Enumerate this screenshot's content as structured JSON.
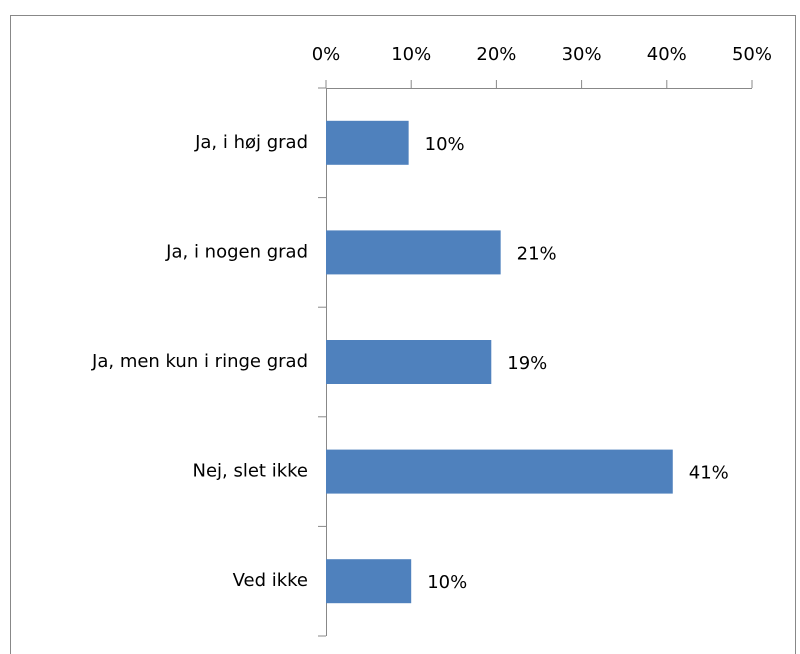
{
  "chart_data": {
    "type": "bar",
    "orientation": "horizontal",
    "categories": [
      "Ja, i høj grad",
      "Ja, i nogen grad",
      "Ja, men kun i ringe grad",
      "Nej, slet ikke",
      "Ved ikke"
    ],
    "values": [
      9.7,
      20.5,
      19.4,
      40.7,
      10.0
    ],
    "value_labels": [
      "10%",
      "21%",
      "19%",
      "41%",
      "10%"
    ],
    "color": "#4f81bd",
    "xlim": [
      0,
      50
    ],
    "xticks": [
      {
        "value": 0,
        "label": "0%"
      },
      {
        "value": 10,
        "label": "10%"
      },
      {
        "value": 20,
        "label": "20%"
      },
      {
        "value": 30,
        "label": "30%"
      },
      {
        "value": 40,
        "label": "40%"
      },
      {
        "value": 50,
        "label": "50%"
      }
    ]
  }
}
